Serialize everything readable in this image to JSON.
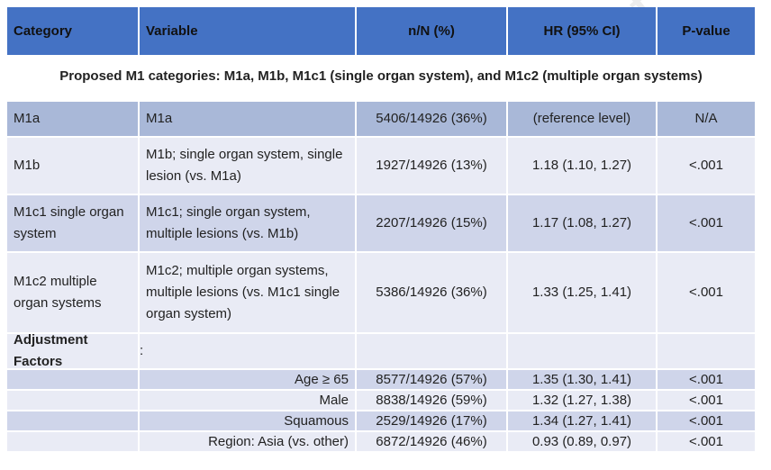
{
  "header": {
    "category": "Category",
    "variable": "Variable",
    "nn": "n/N (%)",
    "hr": "HR (95% CI)",
    "p": "P-value"
  },
  "proposed_title": "Proposed M1 categories: M1a, M1b, M1c1 (single organ system), and M1c2 (multiple organ systems)",
  "rows": [
    {
      "category": "M1a",
      "variable": "M1a",
      "nn": "5406/14926 (36%)",
      "hr": "(reference level)",
      "p": "N/A"
    },
    {
      "category": "M1b",
      "variable": "M1b; single organ system, single lesion (vs. M1a)",
      "nn": "1927/14926 (13%)",
      "hr": "1.18 (1.10, 1.27)",
      "p": "<.001"
    },
    {
      "category": "M1c1 single organ system",
      "variable": "M1c1; single organ system, multiple lesions (vs. M1b)",
      "nn": "2207/14926 (15%)",
      "hr": "1.17 (1.08, 1.27)",
      "p": "<.001"
    },
    {
      "category": "M1c2 multiple organ systems",
      "variable": "M1c2; multiple organ systems, multiple lesions (vs. M1c1 single organ system)",
      "nn": "5386/14926 (36%)",
      "hr": "1.33 (1.25, 1.41)",
      "p": "<.001"
    }
  ],
  "adjustment": {
    "label": "Adjustment Factors",
    "colon": ":"
  },
  "adj_rows": [
    {
      "variable": "Age ≥ 65",
      "nn": "8577/14926 (57%)",
      "hr": "1.35 (1.30, 1.41)",
      "p": "<.001"
    },
    {
      "variable": "Male",
      "nn": "8838/14926 (59%)",
      "hr": "1.32 (1.27, 1.38)",
      "p": "<.001"
    },
    {
      "variable": "Squamous",
      "nn": "2529/14926 (17%)",
      "hr": "1.34 (1.27, 1.41)",
      "p": "<.001"
    },
    {
      "variable": "Region: Asia (vs. other)",
      "nn": "6872/14926 (46%)",
      "hr": "0.93 (0.89, 0.97)",
      "p": "<.001"
    }
  ],
  "watermark": "Journal Pre-proof"
}
